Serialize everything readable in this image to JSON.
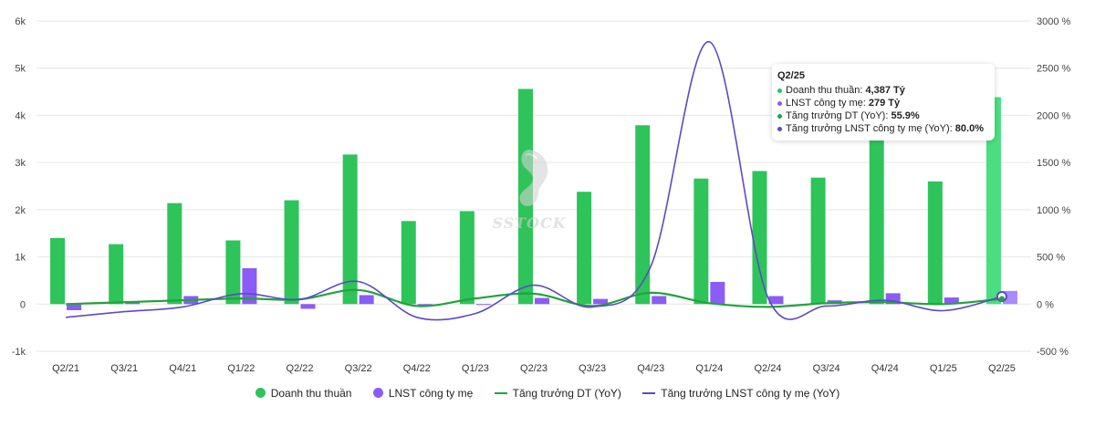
{
  "chart_data": {
    "type": "bar",
    "categories": [
      "Q2/21",
      "Q3/21",
      "Q4/21",
      "Q1/22",
      "Q2/22",
      "Q3/22",
      "Q4/22",
      "Q1/23",
      "Q2/23",
      "Q3/23",
      "Q4/23",
      "Q1/24",
      "Q2/24",
      "Q3/24",
      "Q4/24",
      "Q1/25",
      "Q2/25"
    ],
    "left_axis": {
      "min": -1000,
      "max": 6000,
      "ticks": [
        -1000,
        0,
        1000,
        2000,
        3000,
        4000,
        5000,
        6000
      ],
      "tick_labels": [
        "-1k",
        "0",
        "1k",
        "2k",
        "3k",
        "4k",
        "5k",
        "6k"
      ]
    },
    "right_axis": {
      "min": -500,
      "max": 3000,
      "ticks": [
        -500,
        0,
        500,
        1000,
        1500,
        2000,
        2500,
        3000
      ],
      "tick_labels": [
        "-500 %",
        "0 %",
        "500 %",
        "1000 %",
        "1500 %",
        "2000 %",
        "2500 %",
        "3000 %"
      ]
    },
    "grid": true,
    "legend_position": "bottom",
    "series": [
      {
        "name": "Doanh thu thuần",
        "kind": "bar",
        "axis": "left",
        "color": "#2ec45a",
        "values": [
          1400,
          1270,
          2140,
          1350,
          2200,
          3170,
          1760,
          1970,
          4560,
          2380,
          3790,
          2660,
          2820,
          2680,
          4080,
          2600,
          4387
        ]
      },
      {
        "name": "LNST công ty mẹ",
        "kind": "bar",
        "axis": "left",
        "color": "#8b5cf6",
        "values": [
          -130,
          50,
          170,
          760,
          -100,
          190,
          -30,
          -10,
          130,
          110,
          170,
          470,
          170,
          80,
          230,
          140,
          279
        ]
      },
      {
        "name": "Tăng trưởng DT (YoY)",
        "kind": "line",
        "axis": "right",
        "color": "#23a23c",
        "values": [
          0,
          20,
          40,
          60,
          50,
          150,
          -20,
          60,
          110,
          -20,
          120,
          10,
          -30,
          10,
          20,
          0,
          55.9
        ]
      },
      {
        "name": "Tăng trưởng LNST công ty mẹ (YoY)",
        "kind": "line",
        "axis": "right",
        "color": "#5b4bc4",
        "values": [
          -140,
          -80,
          -30,
          110,
          50,
          240,
          -140,
          -100,
          200,
          -30,
          400,
          2780,
          70,
          -20,
          40,
          -70,
          80
        ]
      }
    ]
  },
  "tooltip": {
    "title": "Q2/25",
    "rows": [
      {
        "label": "Doanh thu thuần: ",
        "value": "4,387 Tỷ",
        "color": "#2ec45a"
      },
      {
        "label": "LNST công ty mẹ: ",
        "value": "279 Tỷ",
        "color": "#8b5cf6"
      },
      {
        "label": "Tăng trưởng DT (YoY): ",
        "value": "55.9%",
        "color": "#23a23c"
      },
      {
        "label": "Tăng trưởng LNST công ty mẹ (YoY): ",
        "value": "80.0%",
        "color": "#5b4bc4"
      }
    ]
  },
  "watermark": {
    "text": "SSTOCK"
  },
  "highlight_color": "#4ade80"
}
